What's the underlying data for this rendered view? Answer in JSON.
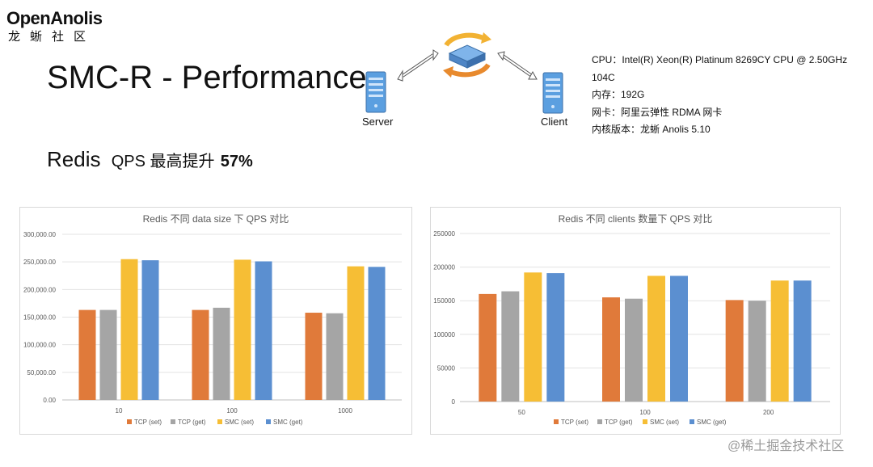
{
  "logo": {
    "name": "OpenAnolis",
    "subtitle": "龙蜥社区"
  },
  "slide": {
    "title": "SMC-R - Performance",
    "subtitle_main": "Redis",
    "subtitle_qps": "QPS 最高提升",
    "subtitle_pct": "57%"
  },
  "diagram": {
    "server_label": "Server",
    "client_label": "Client"
  },
  "specs": [
    "CPU：Intel(R) Xeon(R) Platinum 8269CY CPU @ 2.50GHz 104C",
    "内存：192G",
    "网卡：阿里云弹性 RDMA 网卡",
    "内核版本：龙蜥 Anolis 5.10"
  ],
  "colors": {
    "tcp_set": "#E07A3A",
    "tcp_get": "#A5A5A5",
    "smc_set": "#F6BE35",
    "smc_get": "#5B8FD0"
  },
  "chart_data": [
    {
      "type": "bar",
      "title": "Redis 不同 data size 下 QPS 对比",
      "categories": [
        "10",
        "100",
        "1000"
      ],
      "ylim": [
        0,
        300000
      ],
      "yticks": [
        "0.00",
        "50,000.00",
        "100,000.00",
        "150,000.00",
        "200,000.00",
        "250,000.00",
        "300,000.00"
      ],
      "grid": true,
      "legend": "bottom",
      "series": [
        {
          "name": "TCP (set)",
          "values": [
            163000,
            163000,
            158000
          ]
        },
        {
          "name": "TCP (get)",
          "values": [
            163000,
            167000,
            157000
          ]
        },
        {
          "name": "SMC (set)",
          "values": [
            255000,
            254000,
            242000
          ]
        },
        {
          "name": "SMC (get)",
          "values": [
            253000,
            251000,
            241000
          ]
        }
      ]
    },
    {
      "type": "bar",
      "title": "Redis 不同 clients 数量下 QPS 对比",
      "categories": [
        "50",
        "100",
        "200"
      ],
      "ylim": [
        0,
        250000
      ],
      "yticks": [
        "0",
        "50000",
        "100000",
        "150000",
        "200000",
        "250000"
      ],
      "grid": true,
      "legend": "bottom",
      "series": [
        {
          "name": "TCP (set)",
          "values": [
            160000,
            155000,
            151000
          ]
        },
        {
          "name": "TCP (get)",
          "values": [
            164000,
            153000,
            150000
          ]
        },
        {
          "name": "SMC (set)",
          "values": [
            192000,
            187000,
            180000
          ]
        },
        {
          "name": "SMC (get)",
          "values": [
            191000,
            187000,
            180000
          ]
        }
      ]
    }
  ],
  "watermark": "@稀土掘金技术社区"
}
